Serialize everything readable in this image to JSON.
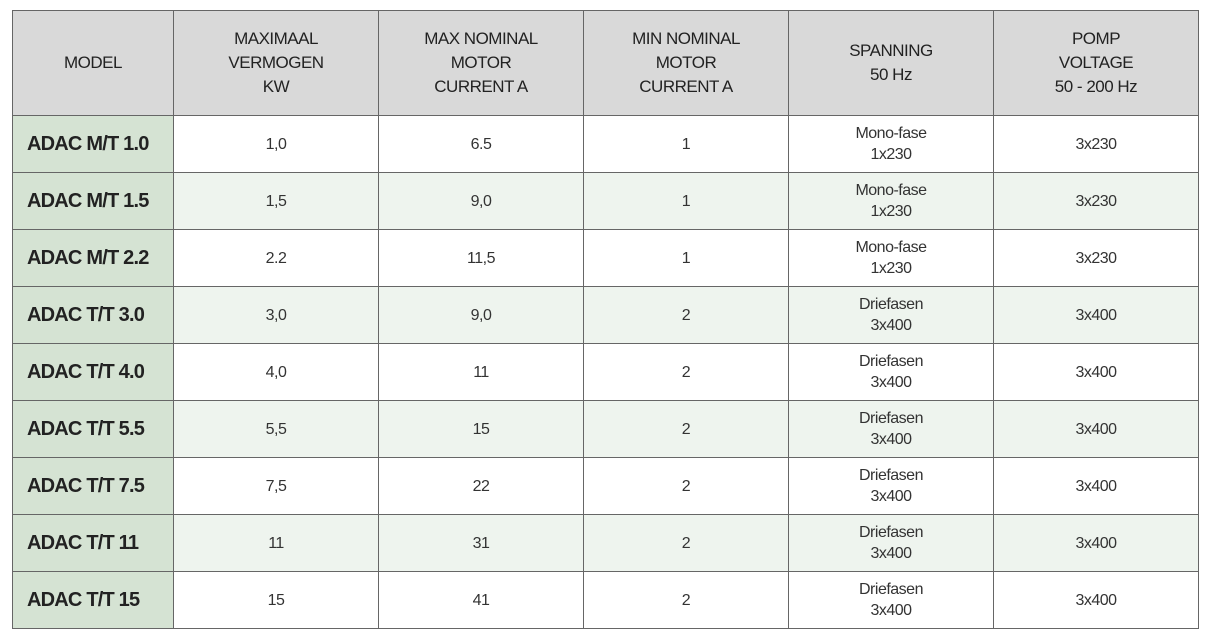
{
  "table": {
    "header": [
      [
        "MODEL"
      ],
      [
        "MAXIMAAL",
        "VERMOGEN",
        "KW"
      ],
      [
        "MAX NOMINAL",
        "MOTOR",
        "CURRENT A"
      ],
      [
        "MIN NOMINAL",
        "MOTOR",
        "CURRENT A"
      ],
      [
        "SPANNING",
        "50 Hz"
      ],
      [
        "POMP",
        "VOLTAGE",
        "50 - 200 Hz"
      ]
    ],
    "rows": [
      [
        "ADAC M/T 1.0",
        "1,0",
        "6.5",
        "1",
        [
          "Mono-fase",
          "1x230"
        ],
        "3x230"
      ],
      [
        "ADAC M/T 1.5",
        "1,5",
        "9,0",
        "1",
        [
          "Mono-fase",
          "1x230"
        ],
        "3x230"
      ],
      [
        "ADAC M/T 2.2",
        "2.2",
        "11,5",
        "1",
        [
          "Mono-fase",
          "1x230"
        ],
        "3x230"
      ],
      [
        "ADAC T/T 3.0",
        "3,0",
        "9,0",
        "2",
        [
          "Driefasen",
          "3x400"
        ],
        "3x400"
      ],
      [
        "ADAC T/T 4.0",
        "4,0",
        "11",
        "2",
        [
          "Driefasen",
          "3x400"
        ],
        "3x400"
      ],
      [
        "ADAC T/T 5.5",
        "5,5",
        "15",
        "2",
        [
          "Driefasen",
          "3x400"
        ],
        "3x400"
      ],
      [
        "ADAC T/T 7.5",
        "7,5",
        "22",
        "2",
        [
          "Driefasen",
          "3x400"
        ],
        "3x400"
      ],
      [
        "ADAC T/T 11",
        "11",
        "31",
        "2",
        [
          "Driefasen",
          "3x400"
        ],
        "3x400"
      ],
      [
        "ADAC T/T 15",
        "15",
        "41",
        "2",
        [
          "Driefasen",
          "3x400"
        ],
        "3x400"
      ]
    ]
  }
}
